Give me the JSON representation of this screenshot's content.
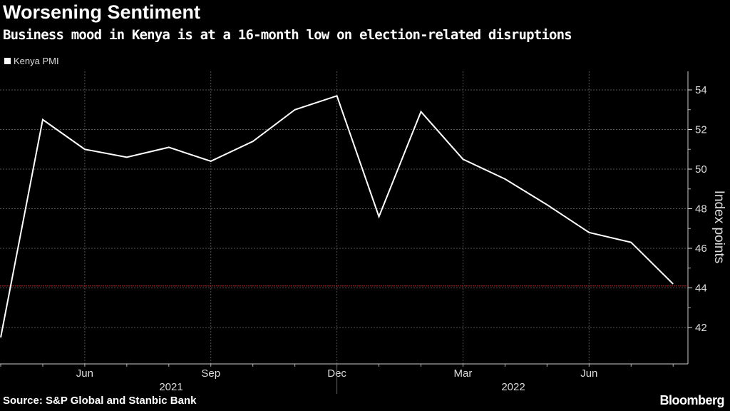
{
  "header": {
    "title": "Worsening Sentiment",
    "subtitle": "Business mood in Kenya is at a 16-month low on election-related disruptions"
  },
  "footer": {
    "source": "Source: S&P Global and Stanbic Bank",
    "brand": "Bloomberg"
  },
  "chart_data": {
    "type": "line",
    "title": "Worsening Sentiment",
    "subtitle": "Business mood in Kenya is at a 16-month low on election-related disruptions",
    "legend": [
      "Kenya PMI"
    ],
    "legend_placement": "top-left",
    "ylabel": "Index points",
    "ylim": [
      40.5,
      55
    ],
    "yticks": [
      42,
      44,
      46,
      48,
      50,
      52,
      54
    ],
    "x": [
      "2021-04",
      "2021-05",
      "2021-06",
      "2021-07",
      "2021-08",
      "2021-09",
      "2021-10",
      "2021-11",
      "2021-12",
      "2022-01",
      "2022-02",
      "2022-03",
      "2022-04",
      "2022-05",
      "2022-06",
      "2022-07",
      "2022-08"
    ],
    "xtick_labels": [
      {
        "i": 2,
        "label": "Jun"
      },
      {
        "i": 5,
        "label": "Sep"
      },
      {
        "i": 8,
        "label": "Dec"
      },
      {
        "i": 11,
        "label": "Mar"
      },
      {
        "i": 14,
        "label": "Jun"
      }
    ],
    "year_labels": [
      "2021",
      "2022"
    ],
    "series": [
      {
        "name": "Kenya PMI",
        "color": "#ffffff",
        "values": [
          41.5,
          52.5,
          51.0,
          50.6,
          51.1,
          50.4,
          51.4,
          53.0,
          53.7,
          47.6,
          52.9,
          50.5,
          49.5,
          48.2,
          46.8,
          46.3,
          44.2
        ]
      }
    ],
    "reference_line": {
      "value": 44.1,
      "color": "#c0282d"
    },
    "grid": true
  }
}
